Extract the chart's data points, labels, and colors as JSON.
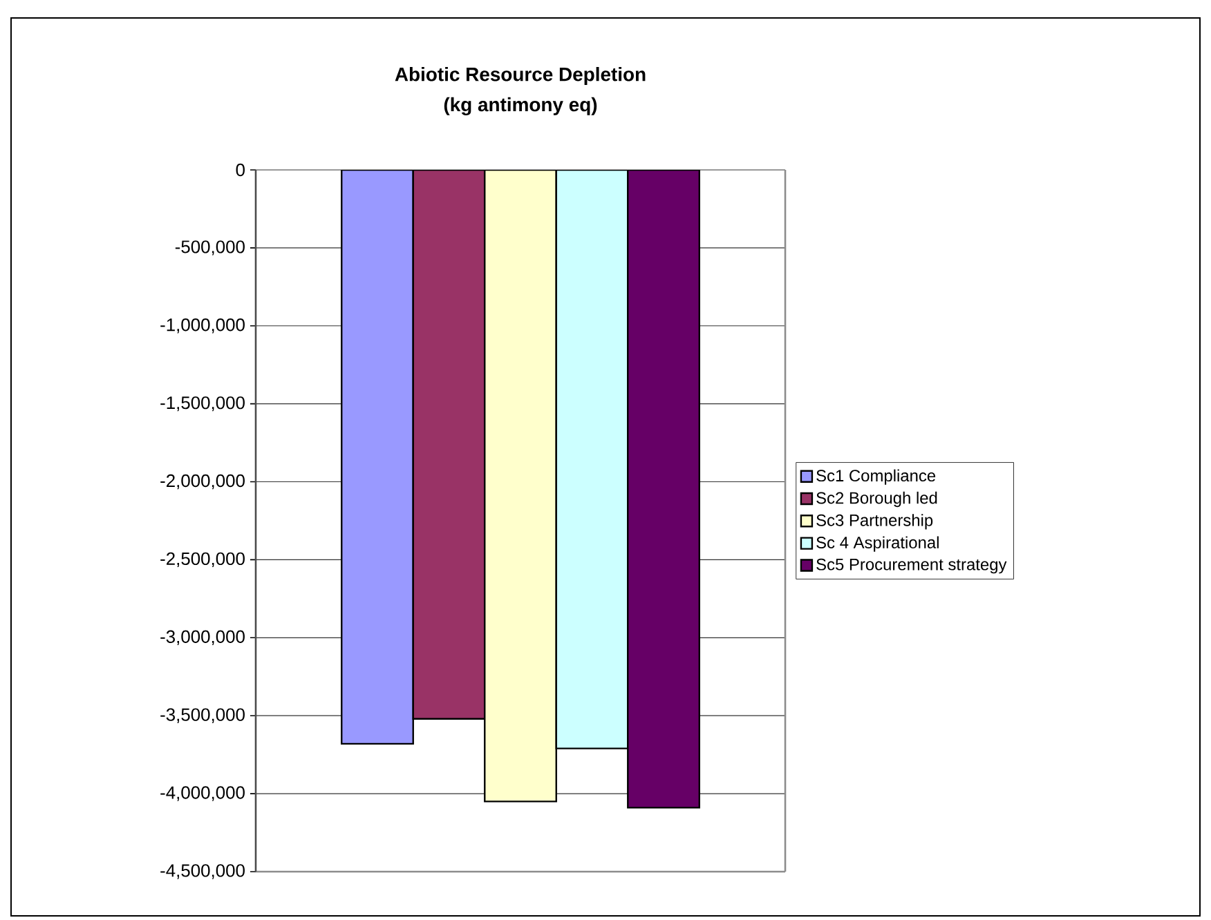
{
  "chart_data": {
    "type": "bar",
    "title": "Abiotic Resource Depletion\n(kg antimony eq)",
    "categories": [
      null
    ],
    "series": [
      {
        "name": "Sc1 Compliance",
        "color": "#9999ff",
        "values": [
          -3680000
        ]
      },
      {
        "name": "Sc2 Borough led",
        "color": "#993366",
        "values": [
          -3520000
        ]
      },
      {
        "name": "Sc3 Partnership",
        "color": "#ffffcc",
        "values": [
          -4050000
        ]
      },
      {
        "name": "Sc 4 Aspirational",
        "color": "#ccffff",
        "values": [
          -3710000
        ]
      },
      {
        "name": "Sc5 Procurement strategy",
        "color": "#660066",
        "values": [
          -4090000
        ]
      }
    ],
    "ylim": [
      -4500000,
      0
    ],
    "yticks": [
      0,
      {
        "value": -500000,
        "label": "-500,000"
      },
      {
        "value": -1000000,
        "label": "-1,000,000"
      },
      {
        "value": -1500000,
        "label": "-1,500,000"
      },
      {
        "value": -2000000,
        "label": "-2,000,000"
      },
      {
        "value": -2500000,
        "label": "-2,500,000"
      },
      {
        "value": -3000000,
        "label": "-3,000,000"
      },
      {
        "value": -3500000,
        "label": "-3,500,000"
      },
      {
        "value": -4000000,
        "label": "-4,000,000"
      },
      {
        "value": -4500000,
        "label": "-4,500,000"
      }
    ],
    "grid": "y",
    "legend": "right",
    "tick_labels": "y"
  }
}
